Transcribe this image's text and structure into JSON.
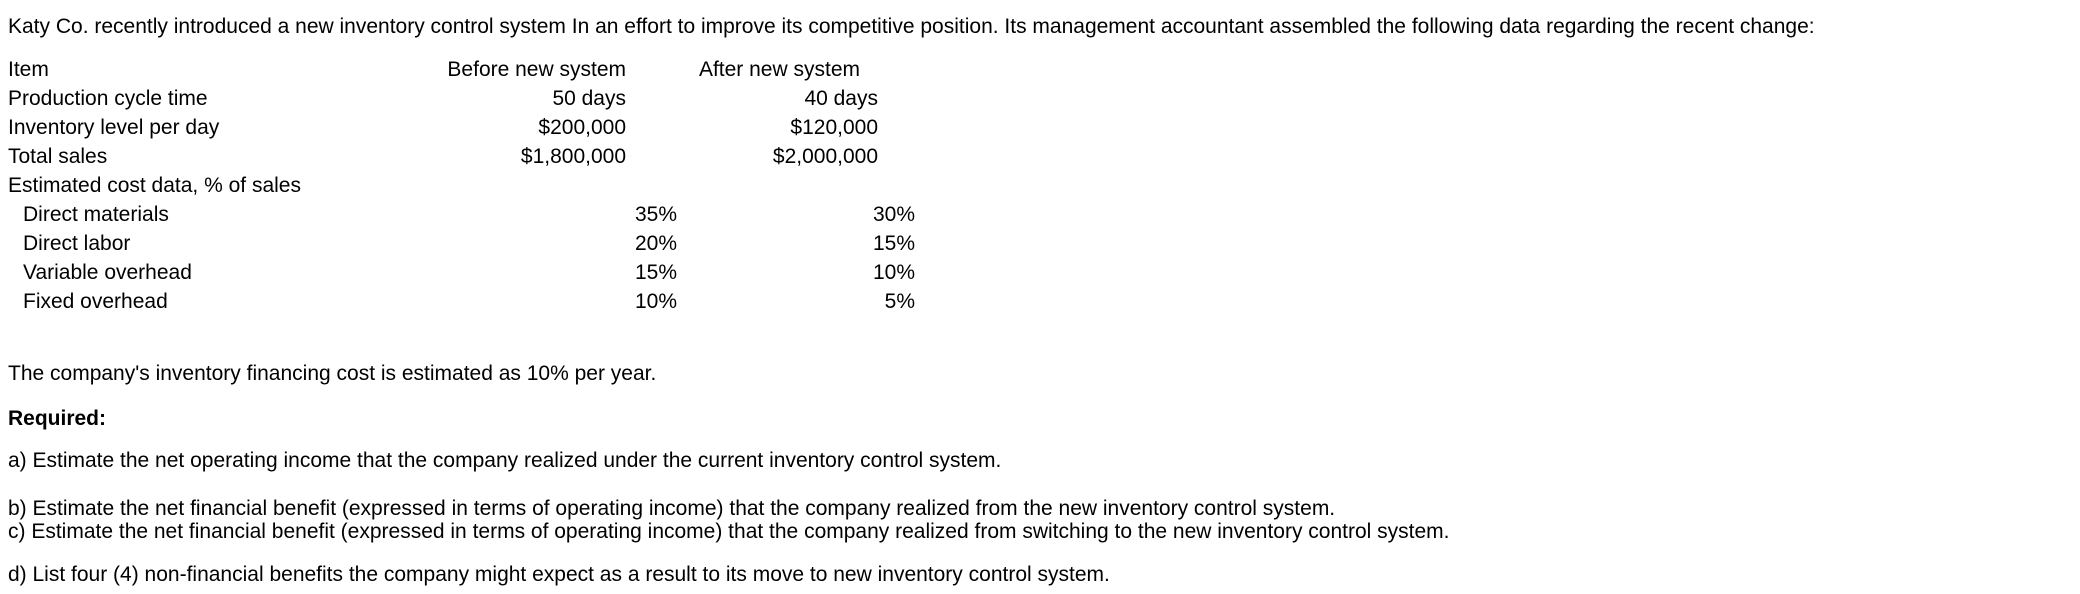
{
  "intro": "Katy Co. recently introduced a new inventory control system In an effort to improve its competitive position. Its management accountant assembled the following data regarding the recent change:",
  "table": {
    "headers": {
      "item": "Item",
      "before": "Before new system",
      "after": "After new system"
    },
    "rows": [
      {
        "label": "Production cycle time",
        "before": "50 days",
        "after": "40 days"
      },
      {
        "label": "Inventory level per day",
        "before": "$200,000",
        "after": "$120,000"
      },
      {
        "label": "Total sales",
        "before": "$1,800,000",
        "after": "$2,000,000"
      }
    ],
    "cost_section_label": "Estimated cost data, % of sales",
    "cost_rows": [
      {
        "label": "Direct materials",
        "before": "35%",
        "after": "30%"
      },
      {
        "label": "Direct labor",
        "before": "20%",
        "after": "15%"
      },
      {
        "label": "Variable overhead",
        "before": "15%",
        "after": "10%"
      },
      {
        "label": "Fixed overhead",
        "before": "10%",
        "after": "5%"
      }
    ]
  },
  "financing_note": "The company's inventory financing cost is estimated as 10% per year.",
  "required_label": "Required:",
  "requirements": [
    "a) Estimate the net operating income that the company realized under the current inventory control system.",
    "b) Estimate the net financial benefit (expressed in terms of operating income) that the company realized from the new inventory control system.",
    "c) Estimate the net financial benefit (expressed in terms of operating income) that the company realized from switching to the new inventory control system.",
    "d) List four (4) non-financial benefits the company might expect as a result to its move to new inventory control system."
  ],
  "colors": {
    "text": "#000000",
    "background": "#ffffff"
  }
}
